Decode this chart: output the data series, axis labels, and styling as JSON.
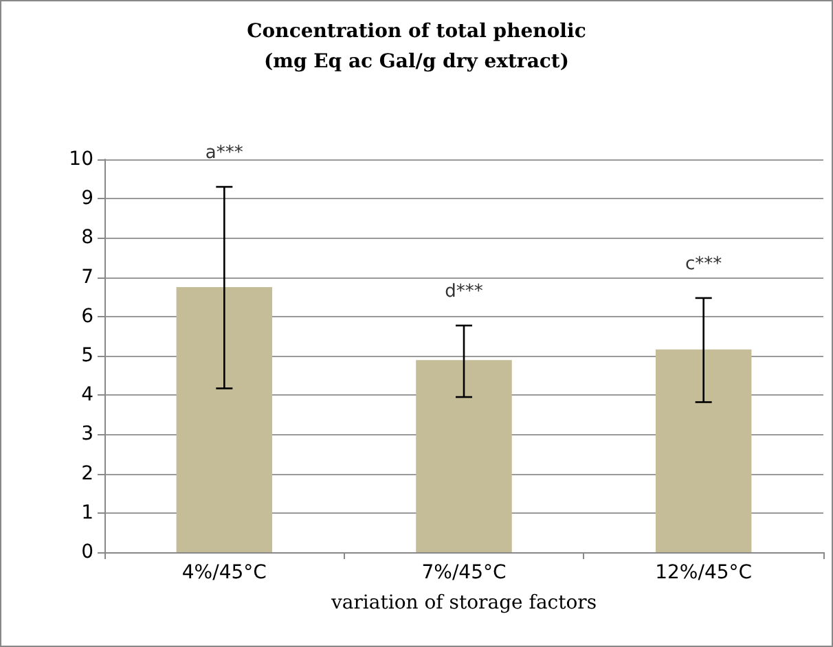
{
  "chart_data": {
    "type": "bar",
    "title": "Concentration of total phenolic\n(mg Eq ac Gal/g dry extract)",
    "xlabel": "variation of storage factors",
    "categories": [
      "4%/45°C",
      "7%/45°C",
      "12%/45°C"
    ],
    "values": [
      6.75,
      4.89,
      5.16
    ],
    "color": "#c4bd97",
    "errors": [
      [
        4.17,
        9.3
      ],
      [
        3.95,
        5.77
      ],
      [
        3.82,
        6.47
      ]
    ],
    "annotations": [
      "a***",
      "d***",
      "c***"
    ],
    "ylim": [
      0,
      10
    ],
    "yticks": [
      0,
      1,
      2,
      3,
      4,
      5,
      6,
      7,
      8,
      9,
      10
    ],
    "grid": "y"
  }
}
